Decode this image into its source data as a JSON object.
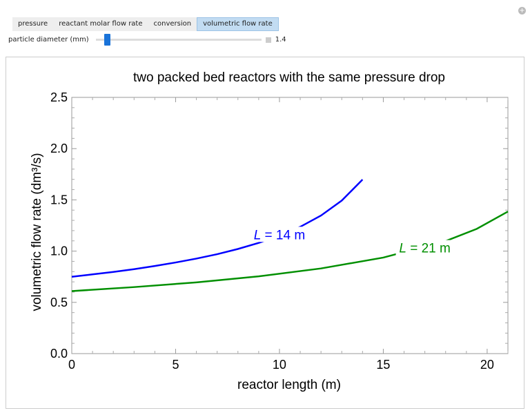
{
  "tabs": [
    "pressure",
    "reactant molar flow rate",
    "conversion",
    "volumetric flow rate"
  ],
  "active_tab": 3,
  "slider": {
    "label": "particle diameter (mm)",
    "value": "1.4",
    "fraction": 0.05
  },
  "colors": {
    "L14": "#0000ff",
    "L21": "#008f00"
  },
  "chart_data": {
    "type": "line",
    "title": "two packed bed reactors with the same pressure drop",
    "xlabel": "reactor length (m)",
    "ylabel": "volumetric flow rate (dm³/s)",
    "xlim": [
      0,
      21
    ],
    "ylim": [
      0,
      2.5
    ],
    "xticks": [
      "0",
      "5",
      "10",
      "15",
      "20"
    ],
    "yticks": [
      "0.0",
      "0.5",
      "1.0",
      "1.5",
      "2.0",
      "2.5"
    ],
    "grid": false,
    "series": [
      {
        "name": "L = 14 m",
        "label_var": "L",
        "label_rest": " = 14 m",
        "label_at": [
          10,
          1.13
        ],
        "x": [
          0,
          1,
          2,
          3,
          4,
          5,
          6,
          7,
          8,
          9,
          10,
          11,
          12,
          13,
          14
        ],
        "y": [
          0.75,
          0.773,
          0.797,
          0.824,
          0.855,
          0.889,
          0.927,
          0.97,
          1.021,
          1.08,
          1.15,
          1.237,
          1.347,
          1.493,
          1.698
        ]
      },
      {
        "name": "L = 21 m",
        "label_var": "L",
        "label_rest": " = 21 m",
        "label_at": [
          17,
          1.0
        ],
        "x": [
          0,
          3,
          6,
          9,
          12,
          15,
          18,
          19.5,
          21
        ],
        "y": [
          0.61,
          0.649,
          0.695,
          0.754,
          0.831,
          0.937,
          1.098,
          1.217,
          1.386
        ]
      }
    ]
  }
}
